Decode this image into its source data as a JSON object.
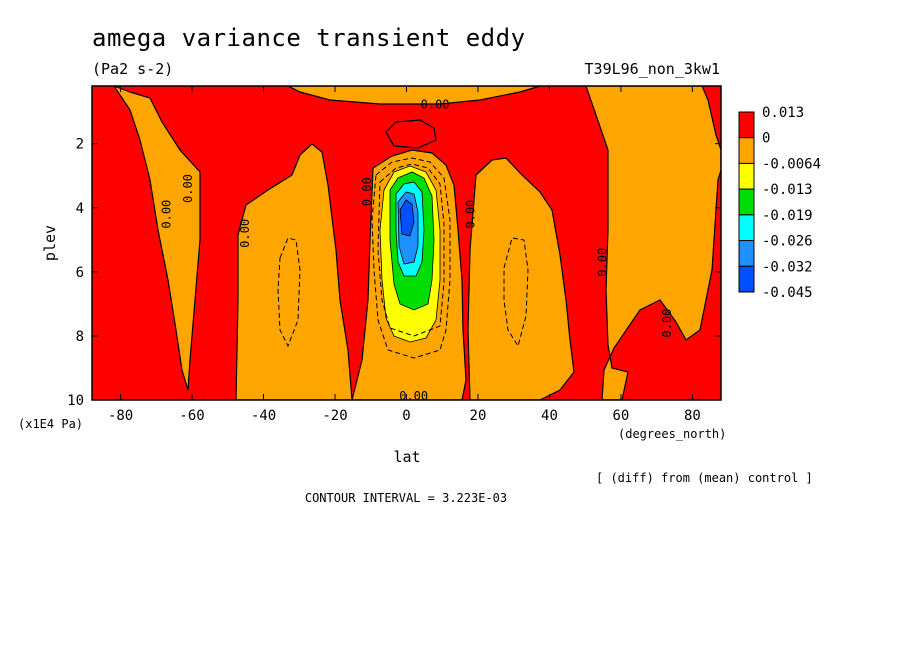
{
  "chart_data": {
    "type": "heatmap",
    "title": "amega variance transient eddy",
    "units": "(Pa2 s-2)",
    "run_label": "T39L96_non_3kw1",
    "xlabel": "lat",
    "x_units": "(degrees_north)",
    "ylabel": "plev",
    "y_units": "(x1E4 Pa)",
    "x_ticks": [
      "-80",
      "-60",
      "-40",
      "-20",
      "0",
      "20",
      "40",
      "60",
      "80"
    ],
    "x_tick_values": [
      -80,
      -60,
      -40,
      -20,
      0,
      20,
      40,
      60,
      80
    ],
    "y_ticks": [
      "2",
      "4",
      "6",
      "8",
      "10"
    ],
    "y_tick_values": [
      2,
      4,
      6,
      8,
      10
    ],
    "xlim": [
      -88,
      88
    ],
    "ylim": [
      10,
      0.2
    ],
    "colorbar": {
      "labels": [
        "0.013",
        "0",
        "-0.0064",
        "-0.013",
        "-0.019",
        "-0.026",
        "-0.032",
        "-0.045"
      ],
      "colors": [
        "#ff0000",
        "#ffa500",
        "#ffff00",
        "#00dd00",
        "#00ffff",
        "#1e90ff",
        "#0050ff"
      ]
    },
    "contour_labels": [
      {
        "text": "0.00",
        "lat": 8,
        "plev": 0.9
      },
      {
        "text": "0.00",
        "lat": -60,
        "plev": 3.4
      },
      {
        "text": "0.00",
        "lat": -66,
        "plev": 4.2
      },
      {
        "text": "0.00",
        "lat": -44,
        "plev": 4.8
      },
      {
        "text": "0.00",
        "lat": -10,
        "plev": 3.5
      },
      {
        "text": "0.00",
        "lat": 19,
        "plev": 4.2
      },
      {
        "text": "0.00",
        "lat": 56,
        "plev": 5.7
      },
      {
        "text": "0.00",
        "lat": 74,
        "plev": 7.6
      },
      {
        "text": "0.00",
        "lat": 2,
        "plev": 10
      }
    ],
    "regions": {
      "background_value": 0.013,
      "positive": ">0",
      "negative_equatorial_minimum": -0.045,
      "minimum_location": {
        "lat": 0,
        "plev": 4.2
      }
    },
    "contour_interval_text": "CONTOUR INTERVAL = 3.223E-03",
    "diff_note": "[ (diff) from (mean) control ]"
  }
}
